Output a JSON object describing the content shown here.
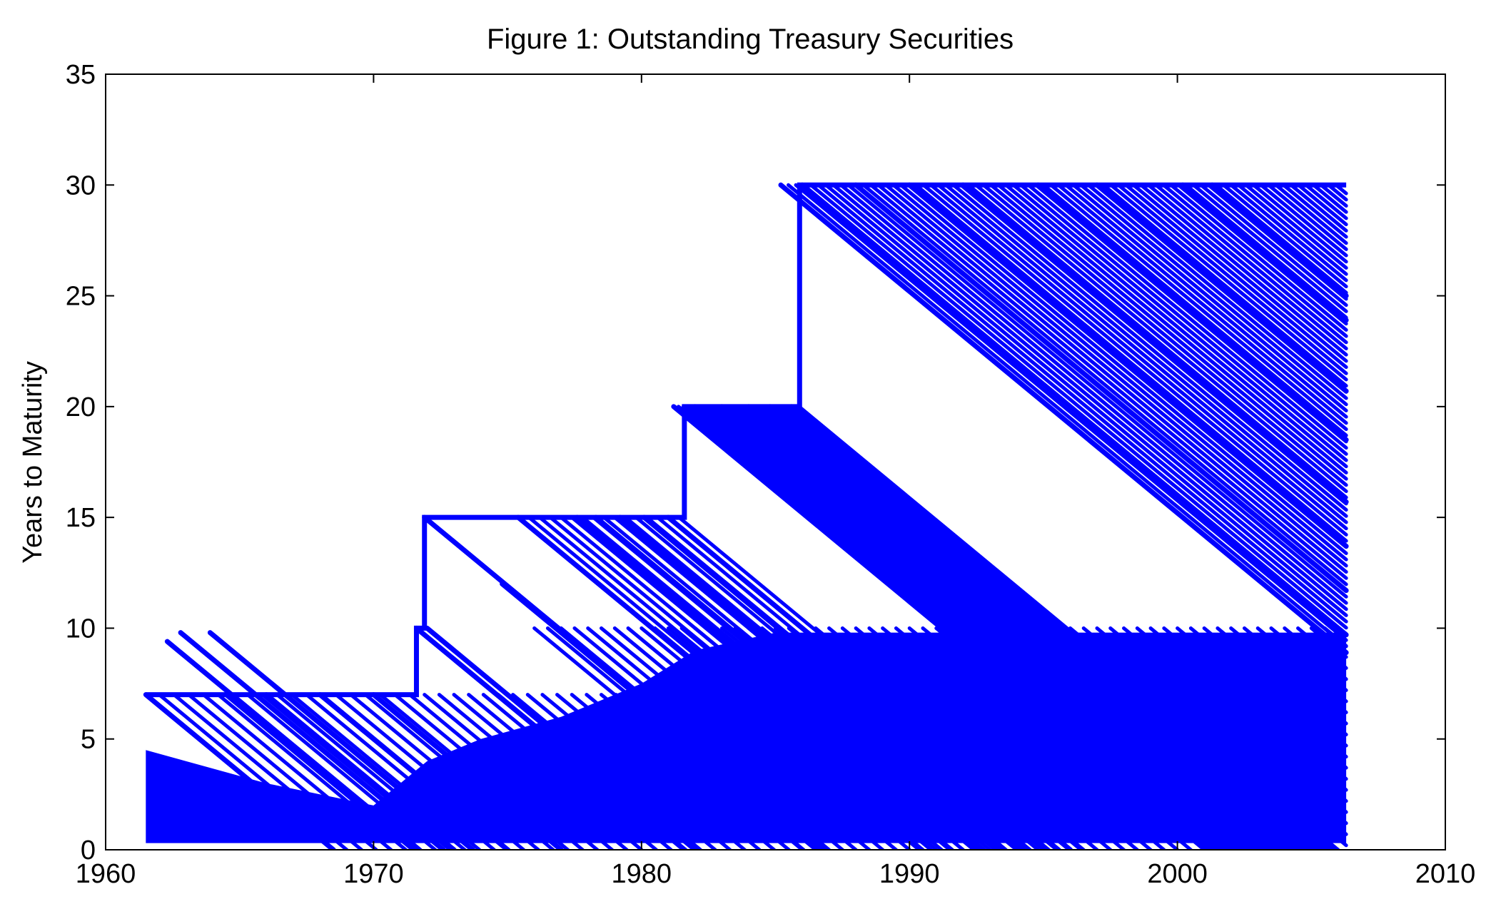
{
  "chart_data": {
    "type": "line",
    "title": "Figure 1: Outstanding Treasury Securities",
    "xlabel": "",
    "ylabel": "Years to Maturity",
    "xlim": [
      1960,
      2010
    ],
    "ylim": [
      0,
      35
    ],
    "xticks": [
      "1960",
      "1970",
      "1980",
      "1990",
      "2000",
      "2010"
    ],
    "yticks": [
      "0",
      "5",
      "10",
      "15",
      "20",
      "25",
      "30",
      "35"
    ],
    "grid": false,
    "legend": "none",
    "color": "#0000ff",
    "max_maturity_envelope": {
      "x": [
        1961.5,
        1971.6,
        1971.6,
        1971.9,
        1971.9,
        1981.6,
        1981.6,
        1985.9,
        1985.9,
        2006.3
      ],
      "y": [
        7,
        7,
        10,
        10,
        15,
        15,
        20,
        20,
        30,
        30
      ]
    },
    "series": [
      {
        "values": [
          {
            "issue": 1961.5,
            "maturity": 7,
            "end": 1968.5
          },
          {
            "issue": 1962.3,
            "maturity": 9.4,
            "end": 1971.7
          },
          {
            "issue": 1962.8,
            "maturity": 9.8,
            "end": 1972.6
          },
          {
            "issue": 1963.9,
            "maturity": 9.8,
            "end": 1973.7
          },
          {
            "issue": 1964.5,
            "maturity": 7,
            "end": 1971.5
          },
          {
            "issue": 1966.0,
            "maturity": 7,
            "end": 1973.0
          },
          {
            "issue": 1968.0,
            "maturity": 7,
            "end": 1975.0
          },
          {
            "issue": 1970.0,
            "maturity": 7,
            "end": 1977.0
          },
          {
            "issue": 1971.6,
            "maturity": 10,
            "end": 1981.6
          },
          {
            "issue": 1972.0,
            "maturity": 10,
            "end": 1982.0
          },
          {
            "issue": 1971.9,
            "maturity": 15,
            "end": 1986.9
          },
          {
            "issue": 1974.8,
            "maturity": 12,
            "end": 1986.8
          },
          {
            "issue": 1975.4,
            "maturity": 15,
            "end": 1990.4
          },
          {
            "issue": 1977.6,
            "maturity": 15,
            "end": 1992.6
          },
          {
            "issue": 1978.3,
            "maturity": 15,
            "end": 1993.3
          },
          {
            "issue": 1979.2,
            "maturity": 15,
            "end": 1994.2
          },
          {
            "issue": 1980.1,
            "maturity": 15,
            "end": 1995.1
          },
          {
            "issue": 1981.0,
            "maturity": 15,
            "end": 1996.0
          },
          {
            "issue": 1981.2,
            "maturity": 20,
            "end": 2001.2
          },
          {
            "issue": 1982.0,
            "maturity": 20,
            "end": 2002.0
          },
          {
            "issue": 1983.0,
            "maturity": 20,
            "end": 2003.0
          },
          {
            "issue": 1984.0,
            "maturity": 20,
            "end": 2004.0
          },
          {
            "issue": 1984.8,
            "maturity": 20,
            "end": 2004.8
          },
          {
            "issue": 1985.6,
            "maturity": 20,
            "end": 2005.6
          },
          {
            "issue": 1985.2,
            "maturity": 30,
            "end": 2006.3
          },
          {
            "issue": 1986.0,
            "maturity": 30,
            "end": 2006.3
          },
          {
            "issue": 1988.0,
            "maturity": 30,
            "end": 2006.3
          },
          {
            "issue": 1990.0,
            "maturity": 30,
            "end": 2006.3
          },
          {
            "issue": 1992.0,
            "maturity": 30,
            "end": 2006.3
          },
          {
            "issue": 1994.8,
            "maturity": 30,
            "end": 2006.3
          },
          {
            "issue": 1997.0,
            "maturity": 30,
            "end": 2006.3
          },
          {
            "issue": 2000.2,
            "maturity": 30,
            "end": 2006.3
          },
          {
            "issue": 2001.3,
            "maturity": 30,
            "end": 2006.3
          }
        ]
      }
    ]
  }
}
